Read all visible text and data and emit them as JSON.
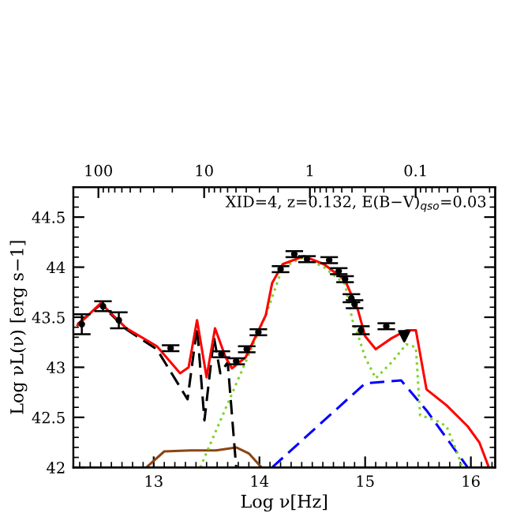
{
  "chart_data": {
    "type": "line",
    "xlabel": "Log ν[Hz]",
    "ylabel": "Log νL(ν) [erg s−1]",
    "annotations": [
      "XID=4, z=0.132, E(B−V)$_{qso}$=0.03"
    ],
    "xlim": [
      12.24,
      16.23
    ],
    "xticks": [
      13,
      14,
      15,
      16
    ],
    "ylim": [
      42,
      44.8
    ],
    "yticks": [
      42,
      42.5,
      43,
      43.5,
      44,
      44.5
    ],
    "x2lim": [
      172.5,
      0.0177
    ],
    "x2ticks": [
      100,
      10,
      1,
      0.1
    ],
    "log": "x2",
    "grid": false,
    "legend": false,
    "series": [
      {
        "color": "#8b4513",
        "line_style": "solid",
        "x": [
          12.93,
          13.1,
          13.35,
          13.59,
          13.78,
          13.9,
          14.02
        ],
        "values": [
          42.0,
          42.16,
          42.17,
          42.17,
          42.2,
          42.14,
          42.0
        ]
      },
      {
        "color": "#000000",
        "line_style": "dashed",
        "x": [
          12.28,
          12.5,
          12.74,
          13.03,
          13.32,
          13.41,
          13.48,
          13.57,
          13.63,
          13.7,
          13.78
        ],
        "values": [
          43.43,
          43.63,
          43.38,
          43.18,
          42.68,
          43.4,
          42.47,
          43.3,
          42.94,
          43.05,
          42.0
        ]
      },
      {
        "color": "#0000ff",
        "line_style": "dashed",
        "x": [
          14.12,
          15.0,
          15.34,
          15.58,
          15.97
        ],
        "values": [
          42.0,
          42.84,
          42.87,
          42.57,
          42.0
        ]
      },
      {
        "color": "#7fd32a",
        "line_style": "dotted",
        "x": [
          13.44,
          14.06,
          14.22,
          14.42,
          14.61,
          14.81,
          14.88,
          14.93,
          15.0,
          15.1,
          15.25,
          15.39,
          15.48,
          15.52,
          15.67,
          15.77,
          15.87,
          15.92
        ],
        "values": [
          42.0,
          43.52,
          44.0,
          44.1,
          44.0,
          43.83,
          43.47,
          43.33,
          43.1,
          42.89,
          43.05,
          43.23,
          43.2,
          42.52,
          42.47,
          42.41,
          42.15,
          42.0
        ]
      },
      {
        "color": "#ff0000",
        "line_style": "solid",
        "x": [
          12.28,
          12.5,
          12.74,
          13.03,
          13.25,
          13.33,
          13.41,
          13.5,
          13.58,
          13.68,
          13.74,
          13.87,
          14.06,
          14.12,
          14.22,
          14.42,
          14.61,
          14.81,
          14.93,
          15.0,
          15.1,
          15.25,
          15.39,
          15.48,
          15.58,
          15.77,
          15.97,
          16.08,
          16.17
        ],
        "values": [
          43.42,
          43.64,
          43.39,
          43.21,
          42.94,
          43.0,
          43.47,
          42.9,
          43.39,
          43.1,
          42.99,
          43.1,
          43.52,
          43.84,
          44.03,
          44.11,
          44.03,
          43.87,
          43.58,
          43.31,
          43.18,
          43.29,
          43.37,
          43.37,
          42.78,
          42.62,
          42.41,
          42.25,
          42.0
        ]
      },
      {
        "type": "scatter",
        "color": "#000000",
        "marker": "circle",
        "x": [
          12.32,
          12.52,
          12.67,
          13.16,
          13.64,
          13.78,
          13.88,
          13.99,
          14.2,
          14.33,
          14.45,
          14.66,
          14.75,
          14.81,
          14.87,
          14.9,
          14.96,
          15.2
        ],
        "values": [
          43.43,
          43.61,
          43.47,
          43.19,
          43.13,
          43.06,
          43.18,
          43.35,
          43.98,
          44.13,
          44.08,
          44.07,
          43.96,
          43.88,
          43.69,
          43.63,
          43.37,
          43.41
        ],
        "errors": [
          0.1,
          0.05,
          0.08,
          0.03,
          0.03,
          0.03,
          0.03,
          0.03,
          0.03,
          0.03,
          0.03,
          0.03,
          0.03,
          0.03,
          0.04,
          0.04,
          0.04,
          0.03
        ]
      },
      {
        "type": "scatter",
        "color": "#000000",
        "marker": "triangle",
        "x": [
          15.37
        ],
        "values": [
          43.31
        ]
      }
    ]
  }
}
